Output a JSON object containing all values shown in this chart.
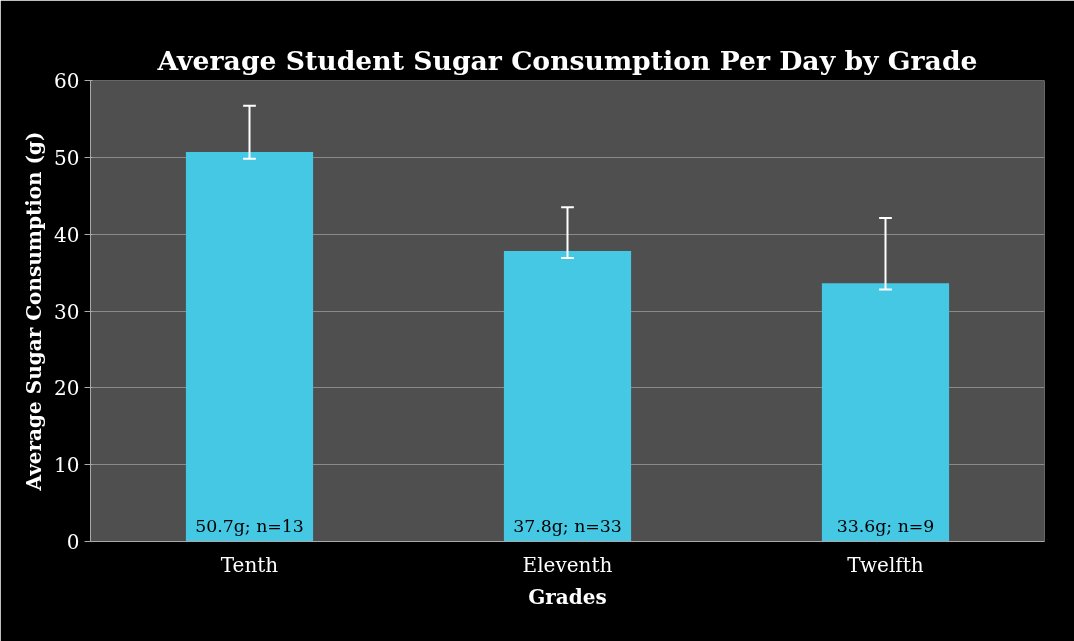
{
  "chart_data": {
    "type": "bar",
    "title": "Average Student Sugar Consumption Per Day by Grade",
    "xlabel": "Grades",
    "ylabel": "Average Sugar Consumption (g)",
    "categories": [
      "Tenth",
      "Eleventh",
      "Twelfth"
    ],
    "values": [
      50.7,
      37.8,
      33.6
    ],
    "color": "#45c8e4",
    "errors": [
      [
        49.8,
        56.7
      ],
      [
        36.9,
        43.5
      ],
      [
        32.8,
        42.1
      ]
    ],
    "value_labels": [
      "50.7g; n=13",
      "37.8g; n=33",
      "33.6g; n=9"
    ],
    "ylim": [
      0,
      60
    ],
    "yticks": [
      0,
      10,
      20,
      30,
      40,
      50,
      60
    ],
    "grid": "y"
  }
}
